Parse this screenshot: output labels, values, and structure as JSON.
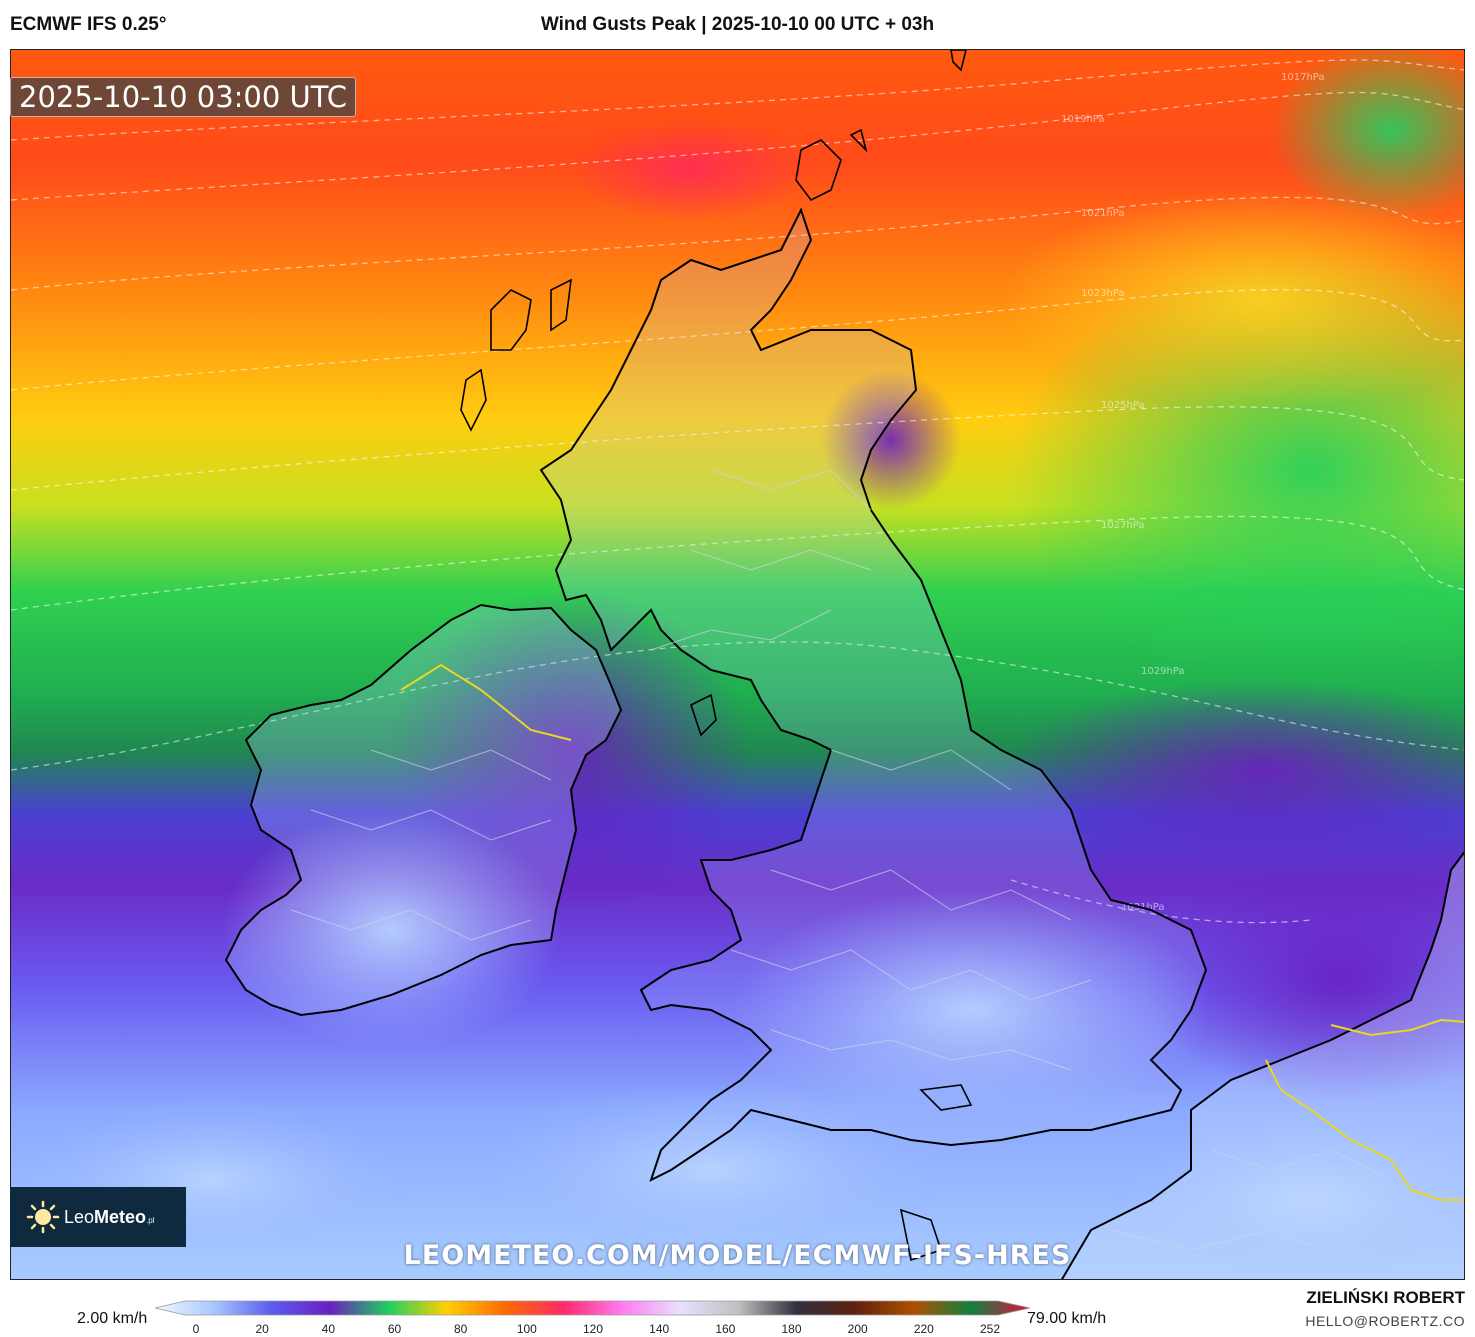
{
  "header": {
    "model": "ECMWF IFS 0.25°",
    "title": "Wind Gusts Peak | 2025-10-10 00 UTC + 03h"
  },
  "map": {
    "valid_time": "2025-10-10 03:00 UTC",
    "watermark_url": "LEOMETEO.COM/MODEL/ECMWF-IFS-HRES",
    "isobar_labels": [
      "1017hPa",
      "1019hPa",
      "1021hPa",
      "1023hPa",
      "1025hPa",
      "1027hPa",
      "1029hPa",
      "1031hPa"
    ],
    "colors": {
      "high": "#ff4a1a",
      "mid": "#22cc55",
      "low": "#6633cc",
      "calm": "#9ec4ff"
    }
  },
  "logo": {
    "brand_light": "Leo",
    "brand_bold": "Meteo",
    "suffix": ".pl"
  },
  "legend": {
    "min_label": "2.00 km/h",
    "max_label": "79.00 km/h",
    "ticks": [
      "0",
      "20",
      "40",
      "60",
      "80",
      "100",
      "120",
      "140",
      "160",
      "180",
      "200",
      "220",
      "252"
    ],
    "stops": [
      "#f4f8ff",
      "#a8c8ff",
      "#5c5cf0",
      "#6a1fc0",
      "#1fd060",
      "#ffd000",
      "#ff6a00",
      "#ff2a6a",
      "#ff7af0",
      "#e8e0ff",
      "#c0c0c0",
      "#303040",
      "#602010",
      "#b05000",
      "#108040",
      "#e01040"
    ]
  },
  "credits": {
    "author": "ZIELIŃSKI ROBERT",
    "email": "HELLO@ROBERTZ.CO"
  }
}
